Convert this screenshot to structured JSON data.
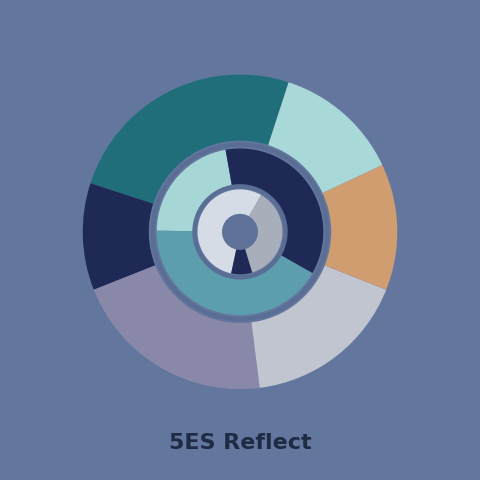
{
  "chart_data": {
    "type": "donut",
    "title": "5ES Reflect",
    "rings": [
      {
        "values": [
          25,
          11,
          21,
          17,
          13,
          13
        ],
        "colors": [
          "#1f6e7a",
          "#1e2a55",
          "#8a88a8",
          "#c0c5cf",
          "#cf9d70",
          "#a8d9d8"
        ]
      },
      {
        "values": [
          22,
          42,
          36
        ],
        "colors": [
          "#a6d6d6",
          "#5c9dae",
          "#1e2a55"
        ]
      },
      {
        "values": [
          55,
          8,
          37
        ],
        "colors": [
          "#d6dce6",
          "#1e2a55",
          "#a9aebb"
        ]
      }
    ]
  }
}
